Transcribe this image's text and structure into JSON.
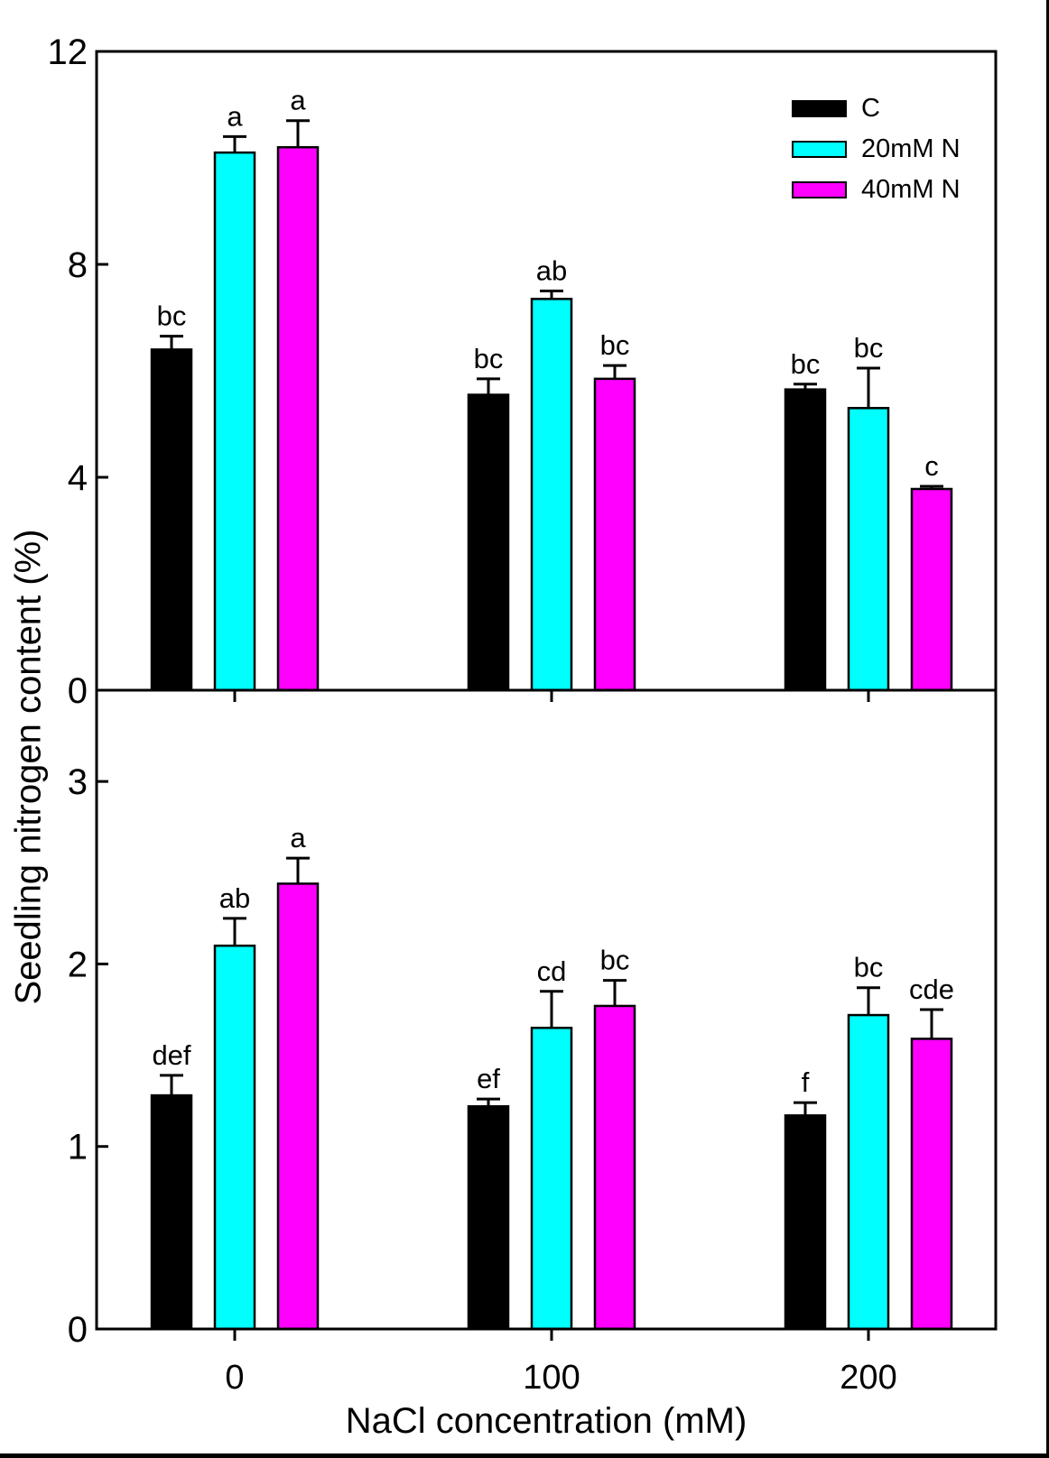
{
  "figure": {
    "ylabel": "Seedling nitrogen content (%)",
    "xlabel": "NaCl concentration (mM)"
  },
  "legend": {
    "items": [
      {
        "label": "C",
        "color": "#000000"
      },
      {
        "label": "20mM N",
        "color": "#00ffff"
      },
      {
        "label": "40mM N",
        "color": "#ff00ff"
      }
    ]
  },
  "chart_data": [
    {
      "panel": "top",
      "type": "bar",
      "categories": [
        "0",
        "100",
        "200"
      ],
      "ylim": [
        0,
        12
      ],
      "yticks": [
        0,
        4,
        8,
        12
      ],
      "grid": false,
      "legend_position": "top-right-inside",
      "series": [
        {
          "name": "C",
          "color": "#000000",
          "values": [
            6.4,
            5.55,
            5.65
          ],
          "errors": [
            0.25,
            0.3,
            0.1
          ],
          "sig_letters": [
            "bc",
            "bc",
            "bc"
          ]
        },
        {
          "name": "20mM N",
          "color": "#00ffff",
          "values": [
            10.1,
            7.35,
            5.3
          ],
          "errors": [
            0.3,
            0.15,
            0.75
          ],
          "sig_letters": [
            "a",
            "ab",
            "bc"
          ]
        },
        {
          "name": "40mM N",
          "color": "#ff00ff",
          "values": [
            10.2,
            5.85,
            3.78
          ],
          "errors": [
            0.5,
            0.25,
            0.05
          ],
          "sig_letters": [
            "a",
            "bc",
            "c"
          ]
        }
      ]
    },
    {
      "panel": "bottom",
      "type": "bar",
      "categories": [
        "0",
        "100",
        "200"
      ],
      "ylim": [
        0,
        3.5
      ],
      "yticks": [
        0,
        1,
        2,
        3
      ],
      "grid": false,
      "series": [
        {
          "name": "C",
          "color": "#000000",
          "values": [
            1.28,
            1.22,
            1.17
          ],
          "errors": [
            0.11,
            0.04,
            0.07
          ],
          "sig_letters": [
            "def",
            "ef",
            "f"
          ]
        },
        {
          "name": "20mM N",
          "color": "#00ffff",
          "values": [
            2.1,
            1.65,
            1.72
          ],
          "errors": [
            0.15,
            0.2,
            0.15
          ],
          "sig_letters": [
            "ab",
            "cd",
            "bc"
          ]
        },
        {
          "name": "40mM N",
          "color": "#ff00ff",
          "values": [
            2.44,
            1.77,
            1.59
          ],
          "errors": [
            0.14,
            0.14,
            0.16
          ],
          "sig_letters": [
            "a",
            "bc",
            "cde"
          ]
        }
      ]
    }
  ]
}
